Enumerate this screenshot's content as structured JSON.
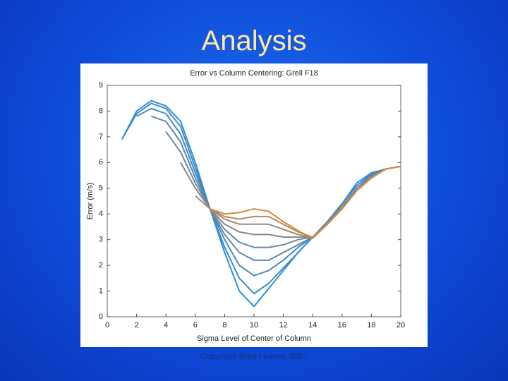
{
  "slide": {
    "title": "Analysis",
    "footer": "Copyright Brett Hoover 2007"
  },
  "chart_data": {
    "type": "line",
    "title": "Error vs Column Centering: Grell F18",
    "x_label": "Sigma Level of Center of Column",
    "y_label": "Error (m/s)",
    "x": [
      1,
      2,
      3,
      4,
      5,
      6,
      7,
      8,
      9,
      10,
      11,
      12,
      13,
      14,
      15,
      16,
      17,
      18,
      19,
      20
    ],
    "xlim": [
      0,
      20
    ],
    "xticks": [
      0,
      2,
      4,
      6,
      8,
      10,
      12,
      14,
      16,
      18,
      20
    ],
    "ylim": [
      0,
      9
    ],
    "yticks": [
      0,
      1,
      2,
      3,
      4,
      5,
      6,
      7,
      8,
      9
    ],
    "grid": false,
    "series": [
      {
        "color": "#2a8fd6",
        "values": [
          6.9,
          8.0,
          8.4,
          8.2,
          7.6,
          6.0,
          4.2,
          2.5,
          1.0,
          0.4,
          1.1,
          1.8,
          2.5,
          3.1,
          3.7,
          4.4,
          5.2,
          5.6,
          5.75,
          5.85
        ]
      },
      {
        "color": "#3a8ccb",
        "values": [
          6.9,
          7.9,
          8.3,
          8.1,
          7.4,
          5.8,
          4.2,
          2.7,
          1.5,
          0.9,
          1.3,
          1.9,
          2.5,
          3.1,
          3.7,
          4.4,
          5.1,
          5.55,
          5.75,
          5.85
        ]
      },
      {
        "color": "#4c89bc",
        "values": [
          null,
          7.8,
          8.1,
          7.9,
          7.1,
          5.6,
          4.2,
          3.0,
          2.0,
          1.6,
          1.8,
          2.2,
          2.7,
          3.1,
          3.7,
          4.3,
          5.0,
          5.5,
          5.75,
          5.85
        ]
      },
      {
        "color": "#5e88ac",
        "values": [
          null,
          null,
          7.8,
          7.6,
          6.8,
          5.4,
          4.2,
          3.2,
          2.5,
          2.2,
          2.2,
          2.5,
          2.8,
          3.1,
          3.7,
          4.3,
          5.0,
          5.5,
          5.75,
          5.85
        ]
      },
      {
        "color": "#71889c",
        "values": [
          null,
          null,
          null,
          7.2,
          6.4,
          5.2,
          4.2,
          3.4,
          2.9,
          2.7,
          2.7,
          2.8,
          3.0,
          3.1,
          3.6,
          4.3,
          5.0,
          5.45,
          5.75,
          5.85
        ]
      },
      {
        "color": "#86888a",
        "values": [
          null,
          null,
          null,
          null,
          6.0,
          5.0,
          4.2,
          3.6,
          3.3,
          3.2,
          3.2,
          3.1,
          3.1,
          3.1,
          3.6,
          4.3,
          4.9,
          5.45,
          5.75,
          5.85
        ]
      },
      {
        "color": "#9d8876",
        "values": [
          null,
          null,
          null,
          null,
          null,
          4.7,
          4.2,
          3.8,
          3.6,
          3.6,
          3.6,
          3.4,
          3.2,
          3.1,
          3.6,
          4.2,
          4.9,
          5.4,
          5.75,
          5.85
        ]
      },
      {
        "color": "#b7895f",
        "values": [
          null,
          null,
          null,
          null,
          null,
          null,
          4.2,
          3.9,
          3.8,
          3.9,
          3.9,
          3.6,
          3.3,
          3.1,
          3.6,
          4.2,
          4.9,
          5.4,
          5.75,
          5.85
        ]
      },
      {
        "color": "#d48a3a",
        "values": [
          null,
          null,
          null,
          null,
          null,
          null,
          4.2,
          4.0,
          4.05,
          4.2,
          4.1,
          3.7,
          3.35,
          3.05,
          3.6,
          4.2,
          4.9,
          5.4,
          5.75,
          5.85
        ]
      }
    ]
  }
}
